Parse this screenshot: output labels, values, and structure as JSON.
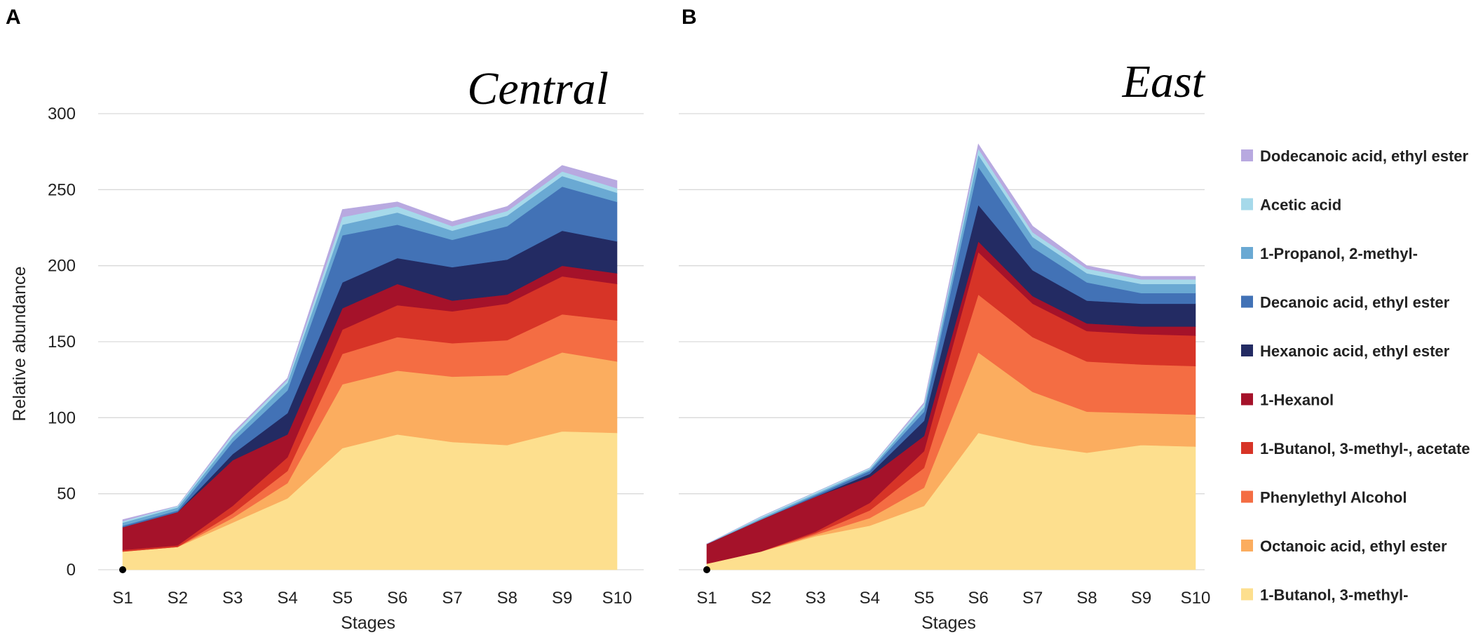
{
  "chart_data": [
    {
      "type": "area",
      "stacked": true,
      "panel": "A",
      "title": "Central",
      "xlabel": "Stages",
      "ylabel": "Relative abundance",
      "ylim": [
        0,
        300
      ],
      "yticks": [
        0,
        50,
        100,
        150,
        200,
        250,
        300
      ],
      "categories": [
        "S1",
        "S2",
        "S3",
        "S4",
        "S5",
        "S6",
        "S7",
        "S8",
        "S9",
        "S10"
      ],
      "series": [
        {
          "name": "1-Butanol, 3-methyl-",
          "values": [
            12,
            15,
            31,
            47,
            80,
            89,
            84,
            82,
            91,
            90
          ]
        },
        {
          "name": "Octanoic acid, ethyl ester",
          "values": [
            0,
            0,
            3,
            10,
            42,
            42,
            43,
            46,
            52,
            47
          ]
        },
        {
          "name": "Phenylethyl Alcohol",
          "values": [
            0,
            0,
            3,
            8,
            20,
            22,
            22,
            23,
            25,
            27
          ]
        },
        {
          "name": "1-Butanol, 3-methyl-, acetate",
          "values": [
            1,
            1,
            5,
            9,
            16,
            21,
            21,
            24,
            25,
            24
          ]
        },
        {
          "name": "1-Hexanol",
          "values": [
            15,
            22,
            30,
            15,
            14,
            14,
            7,
            6,
            7,
            7
          ]
        },
        {
          "name": "Hexanoic acid, ethyl ester",
          "values": [
            0,
            0,
            4,
            14,
            17,
            17,
            22,
            23,
            23,
            21
          ]
        },
        {
          "name": "Decanoic acid, ethyl ester",
          "values": [
            1,
            1,
            8,
            15,
            31,
            22,
            18,
            22,
            29,
            26
          ]
        },
        {
          "name": "1-Propanol, 2-methyl-",
          "values": [
            2,
            2,
            3,
            5,
            7,
            8,
            6,
            7,
            7,
            6
          ]
        },
        {
          "name": "Acetic acid",
          "values": [
            1,
            1,
            2,
            2,
            5,
            4,
            3,
            3,
            3,
            3
          ]
        },
        {
          "name": "Dodecanoic acid, ethyl ester",
          "values": [
            1,
            0,
            1,
            1,
            5,
            3,
            3,
            3,
            4,
            5
          ]
        }
      ]
    },
    {
      "type": "area",
      "stacked": true,
      "panel": "B",
      "title": "East",
      "xlabel": "Stages",
      "ylabel": "",
      "ylim": [
        0,
        300
      ],
      "yticks": [
        0,
        50,
        100,
        150,
        200,
        250,
        300
      ],
      "categories": [
        "S1",
        "S2",
        "S3",
        "S4",
        "S5",
        "S6",
        "S7",
        "S8",
        "S9",
        "S10"
      ],
      "series": [
        {
          "name": "1-Butanol, 3-methyl-",
          "values": [
            4,
            12,
            22,
            29,
            42,
            90,
            82,
            77,
            82,
            81
          ]
        },
        {
          "name": "Octanoic acid, ethyl ester",
          "values": [
            0,
            0,
            1,
            5,
            12,
            53,
            35,
            27,
            21,
            21
          ]
        },
        {
          "name": "Phenylethyl Alcohol",
          "values": [
            0,
            0,
            1,
            5,
            13,
            38,
            36,
            33,
            32,
            32
          ]
        },
        {
          "name": "1-Butanol, 3-methyl-, acetate",
          "values": [
            0,
            0,
            1,
            5,
            11,
            28,
            22,
            20,
            20,
            20
          ]
        },
        {
          "name": "1-Hexanol",
          "values": [
            13,
            21,
            23,
            17,
            10,
            7,
            5,
            5,
            5,
            6
          ]
        },
        {
          "name": "Hexanoic acid, ethyl ester",
          "values": [
            0,
            0,
            0,
            2,
            10,
            24,
            17,
            15,
            15,
            15
          ]
        },
        {
          "name": "Decanoic acid, ethyl ester",
          "values": [
            0,
            0,
            1,
            2,
            6,
            25,
            15,
            12,
            7,
            7
          ]
        },
        {
          "name": "1-Propanol, 2-methyl-",
          "values": [
            0,
            1,
            1,
            1,
            3,
            8,
            7,
            6,
            6,
            6
          ]
        },
        {
          "name": "Acetic acid",
          "values": [
            0,
            1,
            1,
            1,
            2,
            4,
            3,
            3,
            3,
            3
          ]
        },
        {
          "name": "Dodecanoic acid, ethyl ester",
          "values": [
            0,
            0,
            0,
            0,
            1,
            3,
            4,
            2,
            2,
            2
          ]
        }
      ]
    }
  ],
  "legend": {
    "items": [
      {
        "label": "Dodecanoic acid, ethyl ester",
        "color": "#b8a9e0"
      },
      {
        "label": "Acetic acid",
        "color": "#a6d9ea"
      },
      {
        "label": "1-Propanol, 2-methyl-",
        "color": "#6aa9d3"
      },
      {
        "label": "Decanoic acid, ethyl ester",
        "color": "#4272b6"
      },
      {
        "label": "Hexanoic acid, ethyl ester",
        "color": "#232b63"
      },
      {
        "label": "1-Hexanol",
        "color": "#a5122a"
      },
      {
        "label": "1-Butanol, 3-methyl-, acetate",
        "color": "#d73427"
      },
      {
        "label": "Phenylethyl Alcohol",
        "color": "#f46d43"
      },
      {
        "label": "Octanoic acid, ethyl ester",
        "color": "#fbad5f"
      },
      {
        "label": "1-Butanol, 3-methyl-",
        "color": "#fddf8e"
      }
    ]
  },
  "colors": {
    "1-Butanol, 3-methyl-": "#fddf8e",
    "Octanoic acid, ethyl ester": "#fbad5f",
    "Phenylethyl Alcohol": "#f46d43",
    "1-Butanol, 3-methyl-, acetate": "#d73427",
    "1-Hexanol": "#a5122a",
    "Hexanoic acid, ethyl ester": "#232b63",
    "Decanoic acid, ethyl ester": "#4272b6",
    "1-Propanol, 2-methyl-": "#6aa9d3",
    "Acetic acid": "#a6d9ea",
    "Dodecanoic acid, ethyl ester": "#b8a9e0"
  }
}
